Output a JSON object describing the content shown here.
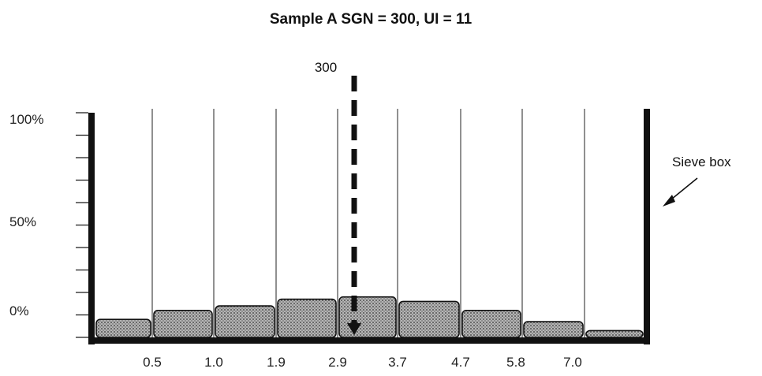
{
  "chart_data": {
    "type": "bar",
    "title": "Sample A SGN = 300, UI = 11",
    "xlabel": "",
    "ylabel": "",
    "y_tick_labels": [
      "100%",
      "50%",
      "0%"
    ],
    "boundaries": [
      "0.5",
      "1.0",
      "1.9",
      "2.9",
      "3.7",
      "4.7",
      "5.8",
      "7.0"
    ],
    "categories": [
      "<0.5",
      "0.5-1.0",
      "1.0-1.9",
      "1.9-2.9",
      "2.9-3.7",
      "3.7-4.7",
      "4.7-5.8",
      "5.8-7.0",
      ">7.0"
    ],
    "values": [
      8,
      12,
      14,
      17,
      18,
      16,
      12,
      7,
      3
    ],
    "ylim": [
      0,
      100
    ],
    "sgn_marker": {
      "label": "300",
      "position": 3.0
    },
    "annotation": "Sieve box",
    "grid": false,
    "legend": "none",
    "colors": {
      "fill": "#8a8a8a",
      "stroke": "#111111",
      "frame": "#111111"
    }
  }
}
